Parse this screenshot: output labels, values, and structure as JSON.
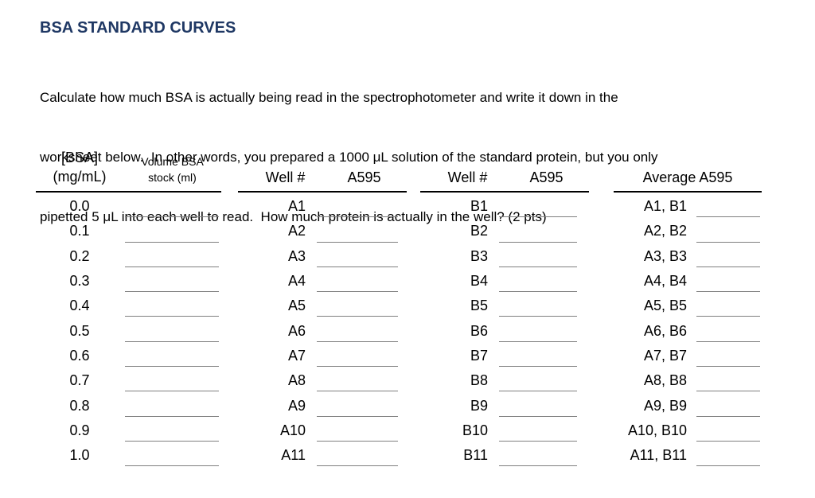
{
  "page": {
    "title": "BSA STANDARD CURVES",
    "instructions_lines": [
      "Calculate how much BSA is actually being read in the spectrophotometer and write it down in the",
      "worksheet below.  In other words, you prepared a 1000 μL solution of the standard protein, but you only",
      "pipetted 5 μL into each well to read.  How much protein is actually in the well? (2 pts)"
    ]
  },
  "worksheet": {
    "bsa_header": {
      "line1": "[BSA]",
      "line2": "(mg/mL)"
    },
    "volume_header": {
      "line1": "Volume BSA",
      "line2": "stock (ml)"
    },
    "well_a_header": {
      "well": "Well #",
      "a595": "A595"
    },
    "well_b_header": {
      "well": "Well #",
      "a595": "A595"
    },
    "average_header": "Average A595",
    "rows": [
      {
        "bsa": "0.0",
        "well_a": "A1",
        "well_b": "B1",
        "avg": "A1, B1"
      },
      {
        "bsa": "0.1",
        "well_a": "A2",
        "well_b": "B2",
        "avg": "A2, B2"
      },
      {
        "bsa": "0.2",
        "well_a": "A3",
        "well_b": "B3",
        "avg": "A3, B3"
      },
      {
        "bsa": "0.3",
        "well_a": "A4",
        "well_b": "B4",
        "avg": "A4, B4"
      },
      {
        "bsa": "0.4",
        "well_a": "A5",
        "well_b": "B5",
        "avg": "A5, B5"
      },
      {
        "bsa": "0.5",
        "well_a": "A6",
        "well_b": "B6",
        "avg": "A6, B6"
      },
      {
        "bsa": "0.6",
        "well_a": "A7",
        "well_b": "B7",
        "avg": "A7, B7"
      },
      {
        "bsa": "0.7",
        "well_a": "A8",
        "well_b": "B8",
        "avg": "A8, B8"
      },
      {
        "bsa": "0.8",
        "well_a": "A9",
        "well_b": "B9",
        "avg": "A9, B9"
      },
      {
        "bsa": "0.9",
        "well_a": "A10",
        "well_b": "B10",
        "avg": "A10, B10"
      },
      {
        "bsa": "1.0",
        "well_a": "A11",
        "well_b": "B11",
        "avg": "A11, B11"
      }
    ]
  },
  "colors": {
    "title_text": "#1F3864",
    "body_text": "#000000",
    "header_rule": "#000000",
    "blank_line": "#7F7F7F"
  }
}
